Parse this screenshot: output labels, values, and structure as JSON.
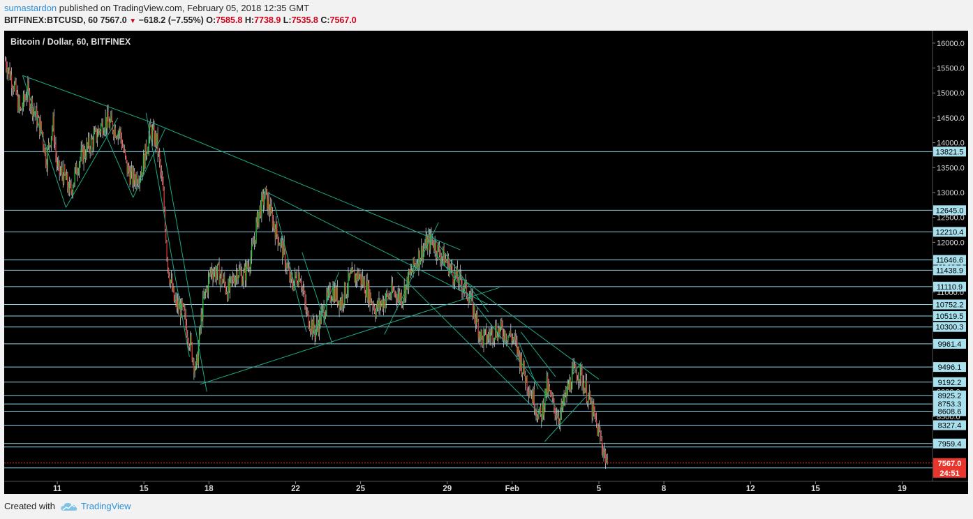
{
  "header": {
    "author": "sumastardon",
    "published": " published on TradingView.com, February 05, 2018 12:35 GMT"
  },
  "ohlc": {
    "symbol": "BITFINEX:BTCUSD, 60",
    "last": "7567.0",
    "change": "−618.2 (−7.55%)",
    "o_label": "O:",
    "o": "7585.8",
    "h_label": "H:",
    "h": "7738.9",
    "l_label": "L:",
    "l": "7535.8",
    "c_label": "C:",
    "c": "7567.0"
  },
  "chart_title": "Bitcoin / Dollar, 60, BITFINEX",
  "footer": {
    "created_with": "Created with",
    "brand": "TradingView"
  },
  "colors": {
    "background": "#000000",
    "up": "#26c93c",
    "down": "#e8362c",
    "wick": "#c8c8c8",
    "hline": "#8fd3e6",
    "trend": "#1fa98a",
    "label_bg": "#a9e0ee",
    "last_price": "#e8362c"
  },
  "chart_data": {
    "type": "candlestick",
    "title": "Bitcoin / Dollar, 60, BITFINEX",
    "ylim": [
      7200,
      16250
    ],
    "y_ticks": [
      "16000.0",
      "15500.0",
      "15000.0",
      "14500.0",
      "14000.0",
      "13500.0",
      "13000.0",
      "12500.0",
      "12000.0",
      "11500.0",
      "11000.0",
      "10500.0",
      "10000.0",
      "9500.0",
      "9000.0",
      "8500.0",
      "8000.0"
    ],
    "x_ticks": [
      {
        "label": "11",
        "day": 11
      },
      {
        "label": "15",
        "day": 15
      },
      {
        "label": "18",
        "day": 18
      },
      {
        "label": "22",
        "day": 22
      },
      {
        "label": "25",
        "day": 25
      },
      {
        "label": "29",
        "day": 29
      },
      {
        "label": "Feb",
        "day": 32
      },
      {
        "label": "5",
        "day": 36
      },
      {
        "label": "8",
        "day": 39
      },
      {
        "label": "12",
        "day": 43
      },
      {
        "label": "15",
        "day": 46
      },
      {
        "label": "19",
        "day": 50
      }
    ],
    "x_range_days": [
      8.55,
      51.4
    ],
    "last_day": 36.4,
    "price_path": [
      [
        8.6,
        15650
      ],
      [
        9.0,
        15150
      ],
      [
        9.3,
        14600
      ],
      [
        9.6,
        15050
      ],
      [
        10.0,
        14550
      ],
      [
        10.3,
        14200
      ],
      [
        10.5,
        13650
      ],
      [
        10.8,
        14400
      ],
      [
        11.0,
        13450
      ],
      [
        11.3,
        13350
      ],
      [
        11.6,
        13000
      ],
      [
        12.0,
        13650
      ],
      [
        12.4,
        13900
      ],
      [
        12.8,
        14150
      ],
      [
        13.2,
        14450
      ],
      [
        13.5,
        14350
      ],
      [
        13.9,
        14200
      ],
      [
        14.2,
        13500
      ],
      [
        14.5,
        13250
      ],
      [
        14.9,
        13450
      ],
      [
        15.3,
        14250
      ],
      [
        15.6,
        14000
      ],
      [
        15.9,
        12900
      ],
      [
        16.1,
        11550
      ],
      [
        16.4,
        10800
      ],
      [
        16.8,
        10600
      ],
      [
        17.1,
        10050
      ],
      [
        17.4,
        9400
      ],
      [
        17.7,
        10700
      ],
      [
        18.1,
        11450
      ],
      [
        18.5,
        11350
      ],
      [
        18.9,
        11000
      ],
      [
        19.3,
        11450
      ],
      [
        19.6,
        11300
      ],
      [
        20.0,
        11800
      ],
      [
        20.3,
        12600
      ],
      [
        20.6,
        12950
      ],
      [
        21.0,
        12350
      ],
      [
        21.4,
        11850
      ],
      [
        21.8,
        11150
      ],
      [
        22.2,
        11400
      ],
      [
        22.5,
        10550
      ],
      [
        22.9,
        10200
      ],
      [
        23.3,
        10650
      ],
      [
        23.7,
        11050
      ],
      [
        24.1,
        10800
      ],
      [
        24.5,
        11250
      ],
      [
        24.9,
        11350
      ],
      [
        25.3,
        11050
      ],
      [
        25.7,
        10650
      ],
      [
        26.1,
        10850
      ],
      [
        26.5,
        11000
      ],
      [
        26.9,
        10900
      ],
      [
        27.3,
        11350
      ],
      [
        27.6,
        11650
      ],
      [
        28.0,
        11950
      ],
      [
        28.3,
        12050
      ],
      [
        28.6,
        11800
      ],
      [
        29.0,
        11600
      ],
      [
        29.3,
        11350
      ],
      [
        29.7,
        11150
      ],
      [
        30.0,
        10950
      ],
      [
        30.3,
        10500
      ],
      [
        30.6,
        10050
      ],
      [
        30.9,
        10100
      ],
      [
        31.2,
        10250
      ],
      [
        31.6,
        10200
      ],
      [
        32.0,
        10100
      ],
      [
        32.3,
        9750
      ],
      [
        32.6,
        9300
      ],
      [
        33.0,
        8850
      ],
      [
        33.3,
        8450
      ],
      [
        33.6,
        9100
      ],
      [
        33.9,
        8700
      ],
      [
        34.2,
        8500
      ],
      [
        34.5,
        8950
      ],
      [
        34.8,
        9350
      ],
      [
        35.1,
        9400
      ],
      [
        35.4,
        9050
      ],
      [
        35.7,
        8600
      ],
      [
        36.0,
        8150
      ],
      [
        36.2,
        7850
      ],
      [
        36.4,
        7567
      ]
    ],
    "horizontal_levels": [
      {
        "value": 13821.5,
        "label": "13821.5"
      },
      {
        "value": 12645.0,
        "label": "12645.0"
      },
      {
        "value": 12210.4,
        "label": "12210.4"
      },
      {
        "value": 11646.6,
        "label": "11646.6"
      },
      {
        "value": 11438.9,
        "label": "11438.9"
      },
      {
        "value": 11110.9,
        "label": "11110.9"
      },
      {
        "value": 10752.2,
        "label": "10752.2"
      },
      {
        "value": 10519.5,
        "label": "10519.5"
      },
      {
        "value": 10300.3,
        "label": "10300.3"
      },
      {
        "value": 9961.4,
        "label": "9961.4"
      },
      {
        "value": 9496.1,
        "label": "9496.1"
      },
      {
        "value": 9192.2,
        "label": "9192.2"
      },
      {
        "value": 8925.2,
        "label": "8925.2"
      },
      {
        "value": 8753.3,
        "label": "8753.3"
      },
      {
        "value": 8608.6,
        "label": "8608.6"
      },
      {
        "value": 8327.4,
        "label": "8327.4"
      },
      {
        "value": 7959.4,
        "label": "7959.4"
      },
      {
        "value": 7890.0,
        "label": ""
      },
      {
        "value": 7470.0,
        "label": ""
      }
    ],
    "last_price": {
      "value": 7567.0,
      "label": "7567.0",
      "countdown": "24:51"
    },
    "trendlines": [
      [
        [
          9.4,
          15350
        ],
        [
          15.4,
          14400
        ]
      ],
      [
        [
          15.4,
          14400
        ],
        [
          29.6,
          11850
        ]
      ],
      [
        [
          20.7,
          13000
        ],
        [
          30.9,
          10750
        ]
      ],
      [
        [
          17.6,
          9150
        ],
        [
          31.4,
          11090
        ]
      ],
      [
        [
          9.4,
          15350
        ],
        [
          11.4,
          12700
        ]
      ],
      [
        [
          11.4,
          12700
        ],
        [
          13.8,
          14500
        ]
      ],
      [
        [
          13.0,
          14400
        ],
        [
          14.5,
          12900
        ]
      ],
      [
        [
          14.5,
          12900
        ],
        [
          16.0,
          14300
        ]
      ],
      [
        [
          15.1,
          14600
        ],
        [
          17.1,
          9700
        ]
      ],
      [
        [
          15.9,
          13900
        ],
        [
          17.9,
          9000
        ]
      ],
      [
        [
          21.0,
          12800
        ],
        [
          22.5,
          10200
        ]
      ],
      [
        [
          22.8,
          10100
        ],
        [
          24.0,
          11400
        ]
      ],
      [
        [
          22.3,
          11800
        ],
        [
          23.7,
          9950
        ]
      ],
      [
        [
          26.1,
          10150
        ],
        [
          28.6,
          12400
        ]
      ],
      [
        [
          28.1,
          12250
        ],
        [
          30.9,
          10600
        ]
      ],
      [
        [
          26.7,
          11400
        ],
        [
          33.4,
          8500
        ]
      ],
      [
        [
          28.4,
          11800
        ],
        [
          34.0,
          8700
        ]
      ],
      [
        [
          28.8,
          11550
        ],
        [
          36.0,
          9250
        ]
      ],
      [
        [
          33.5,
          8000
        ],
        [
          35.4,
          8900
        ]
      ],
      [
        [
          32.3,
          10000
        ],
        [
          33.2,
          9050
        ]
      ],
      [
        [
          34.8,
          9350
        ],
        [
          35.2,
          9600
        ]
      ],
      [
        [
          32.4,
          10200
        ],
        [
          34.0,
          9300
        ]
      ]
    ]
  }
}
